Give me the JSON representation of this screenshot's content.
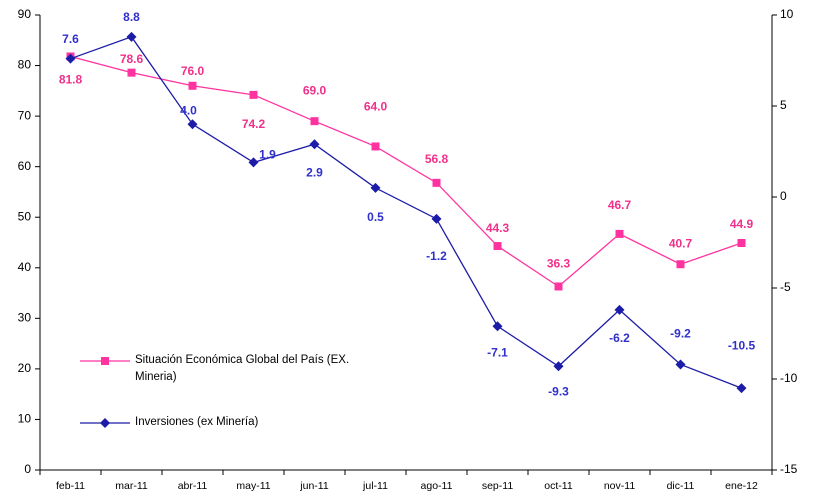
{
  "chart_data": {
    "type": "line",
    "categories": [
      "feb-11",
      "mar-11",
      "abr-11",
      "may-11",
      "jun-11",
      "jul-11",
      "ago-11",
      "sep-11",
      "oct-11",
      "nov-11",
      "dic-11",
      "ene-12"
    ],
    "series": [
      {
        "name": "Situación Económica Global del País (EX. Mineria)",
        "color": "#ff33a0",
        "values": [
          81.8,
          78.6,
          76.0,
          74.2,
          69.0,
          64.0,
          56.8,
          44.3,
          36.3,
          46.7,
          40.7,
          44.9
        ],
        "value_labels": [
          "81.8",
          "78.6",
          "76.0",
          "74.2",
          "69.0",
          "64.0",
          "56.8",
          "44.3",
          "36.3",
          "46.7",
          "40.7",
          "44.9"
        ]
      },
      {
        "name": "Inversiones (ex Minería)",
        "color": "#1c1ca8",
        "axis": "y2",
        "values": [
          7.6,
          8.8,
          4.0,
          1.9,
          2.9,
          0.5,
          -1.2,
          -7.1,
          -9.3,
          -6.2,
          -9.2,
          -10.5
        ],
        "value_labels": [
          "7.6",
          "8.8",
          "4.0",
          "1.9",
          "2.9",
          "0.5",
          "-1.2",
          "-7.1",
          "-9.3",
          "-6.2",
          "-9.2",
          "-10.5"
        ]
      }
    ],
    "ylim": [
      0,
      90
    ],
    "yticks": [
      0,
      10,
      20,
      30,
      40,
      50,
      60,
      70,
      80,
      90
    ],
    "y2lim": [
      -15,
      10
    ],
    "y2ticks": [
      -15,
      -10,
      -5,
      0,
      5,
      10
    ]
  }
}
